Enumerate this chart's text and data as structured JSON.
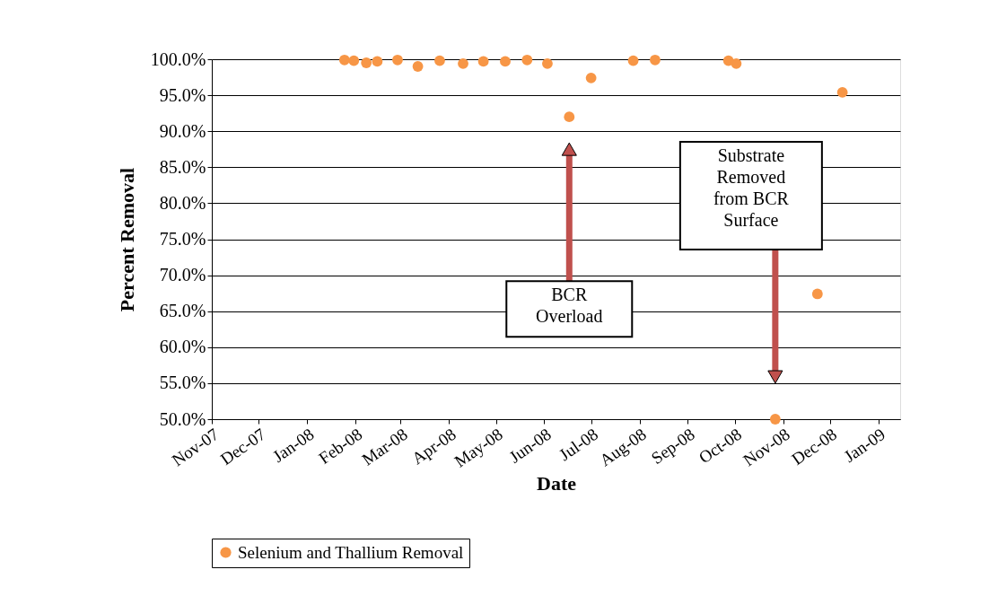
{
  "chart_data": {
    "type": "scatter",
    "xlabel": "Date",
    "ylabel": "Percent Removal",
    "x": [
      "2008-01-25",
      "2008-01-31",
      "2008-02-08",
      "2008-02-15",
      "2008-02-28",
      "2008-03-12",
      "2008-03-26",
      "2008-04-10",
      "2008-04-23",
      "2008-05-07",
      "2008-05-21",
      "2008-06-03",
      "2008-06-17",
      "2008-07-01",
      "2008-07-28",
      "2008-08-11",
      "2008-09-27",
      "2008-10-02",
      "2008-10-27",
      "2008-11-23",
      "2008-12-09"
    ],
    "series": [
      {
        "name": "Selenium and Thallium Removal",
        "color": "#f79646",
        "values": [
          99.9,
          99.8,
          99.5,
          99.7,
          99.9,
          99.0,
          99.8,
          99.4,
          99.7,
          99.7,
          99.9,
          99.4,
          92.0,
          97.4,
          99.8,
          99.9,
          99.8,
          99.4,
          50.0,
          67.4,
          95.4
        ]
      }
    ],
    "xlim": [
      "2007-11-01",
      "2009-01-15"
    ],
    "xticks": [
      {
        "value": "2007-11-01",
        "label": "Nov-07"
      },
      {
        "value": "2007-12-01",
        "label": "Dec-07"
      },
      {
        "value": "2008-01-01",
        "label": "Jan-08"
      },
      {
        "value": "2008-02-01",
        "label": "Feb-08"
      },
      {
        "value": "2008-03-01",
        "label": "Mar-08"
      },
      {
        "value": "2008-04-01",
        "label": "Apr-08"
      },
      {
        "value": "2008-05-01",
        "label": "May-08"
      },
      {
        "value": "2008-06-01",
        "label": "Jun-08"
      },
      {
        "value": "2008-07-01",
        "label": "Jul-08"
      },
      {
        "value": "2008-08-01",
        "label": "Aug-08"
      },
      {
        "value": "2008-09-01",
        "label": "Sep-08"
      },
      {
        "value": "2008-10-01",
        "label": "Oct-08"
      },
      {
        "value": "2008-11-01",
        "label": "Nov-08"
      },
      {
        "value": "2008-12-01",
        "label": "Dec-08"
      },
      {
        "value": "2009-01-01",
        "label": "Jan-09"
      }
    ],
    "ylim": [
      50,
      100
    ],
    "yticks": [
      {
        "value": 50,
        "label": "50.0%"
      },
      {
        "value": 55,
        "label": "55.0%"
      },
      {
        "value": 60,
        "label": "60.0%"
      },
      {
        "value": 65,
        "label": "65.0%"
      },
      {
        "value": 70,
        "label": "70.0%"
      },
      {
        "value": 75,
        "label": "75.0%"
      },
      {
        "value": 80,
        "label": "80.0%"
      },
      {
        "value": 85,
        "label": "85.0%"
      },
      {
        "value": 90,
        "label": "90.0%"
      },
      {
        "value": 95,
        "label": "95.0%"
      },
      {
        "value": 100,
        "label": "100.0%"
      }
    ],
    "grid": "y",
    "legend": "bottom",
    "marker": "circle",
    "annotations": [
      "BCR\nOverload",
      "Substrate\nRemoved\nfrom BCR\nSurface"
    ]
  }
}
